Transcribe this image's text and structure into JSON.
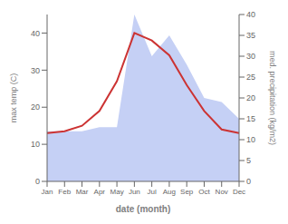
{
  "chart_data": {
    "type": "line",
    "xlabel": "date (month)",
    "ylabel": "max temp (C)",
    "y2label": "med. precipitation (kg/m2)",
    "categories": [
      "Jan",
      "Feb",
      "Mar",
      "Apr",
      "May",
      "Jun",
      "Jul",
      "Aug",
      "Sep",
      "Oct",
      "Nov",
      "Dec"
    ],
    "series": [
      {
        "type": "area",
        "color": "#c5d0f5",
        "axis": "y2",
        "values": [
          12,
          12,
          12,
          13,
          13,
          40,
          30,
          35,
          28,
          20,
          19,
          15
        ]
      },
      {
        "type": "line",
        "color": "#cc3333",
        "values": [
          13,
          13.5,
          15,
          19,
          27,
          40,
          38,
          34,
          26,
          19,
          14,
          13
        ]
      }
    ],
    "ylim": [
      0,
      45
    ],
    "yticks": [
      0,
      10,
      20,
      30,
      40
    ],
    "y2lim": [
      0,
      40
    ],
    "y2ticks": [
      0,
      5,
      10,
      15,
      20,
      25,
      30,
      35,
      40
    ]
  }
}
